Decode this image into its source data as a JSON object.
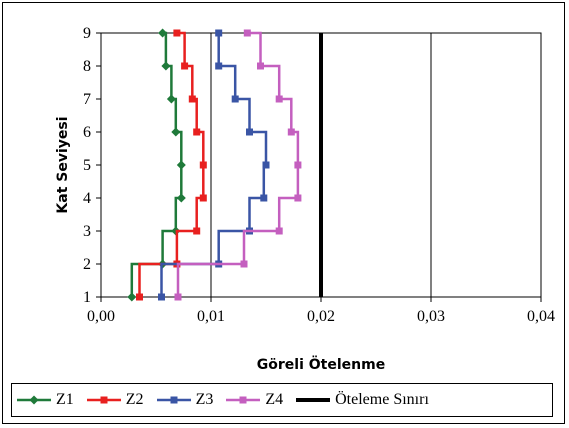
{
  "chart_data": {
    "type": "line",
    "title": "",
    "xlabel": "Göreli Ötelenme",
    "ylabel": "Kat Seviyesi",
    "xlim": [
      0,
      0.04
    ],
    "ylim": [
      1,
      9
    ],
    "x_ticks": [
      "0,00",
      "0,01",
      "0,02",
      "0,03",
      "0,04"
    ],
    "x_tick_values": [
      0,
      0.01,
      0.02,
      0.03,
      0.04
    ],
    "y_ticks": [
      "1",
      "2",
      "3",
      "4",
      "5",
      "6",
      "7",
      "8",
      "9"
    ],
    "y_tick_values": [
      1,
      2,
      3,
      4,
      5,
      6,
      7,
      8,
      9
    ],
    "grid": "vertical",
    "legend_position": "bottom",
    "series": [
      {
        "name": "Z1",
        "color": "#1f7a3a",
        "marker": "diamond",
        "values": [
          0.0028,
          0.0056,
          0.0068,
          0.0073,
          0.0073,
          0.0068,
          0.0064,
          0.0059,
          0.0056
        ]
      },
      {
        "name": "Z2",
        "color": "#e8201f",
        "marker": "square",
        "values": [
          0.0035,
          0.0069,
          0.0087,
          0.0093,
          0.0093,
          0.0087,
          0.0083,
          0.0076,
          0.0069
        ]
      },
      {
        "name": "Z3",
        "color": "#3a55a5",
        "marker": "square",
        "values": [
          0.0055,
          0.0107,
          0.0135,
          0.0148,
          0.015,
          0.0135,
          0.0122,
          0.0107,
          0.0107
        ]
      },
      {
        "name": "Z4",
        "color": "#c45fbf",
        "marker": "square",
        "values": [
          0.007,
          0.013,
          0.0162,
          0.0179,
          0.0179,
          0.0173,
          0.0162,
          0.0145,
          0.0133
        ]
      }
    ],
    "limit_line": {
      "name": "Öteleme Sınırı",
      "x": 0.02,
      "color": "#000000"
    }
  }
}
